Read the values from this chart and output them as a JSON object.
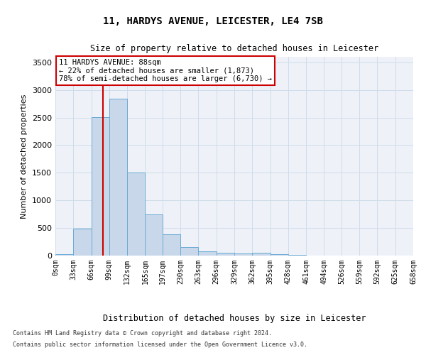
{
  "title": "11, HARDYS AVENUE, LEICESTER, LE4 7SB",
  "subtitle": "Size of property relative to detached houses in Leicester",
  "xlabel": "Distribution of detached houses by size in Leicester",
  "ylabel": "Number of detached properties",
  "bar_color": "#c8d8ea",
  "bar_edge_color": "#6aaad4",
  "grid_color": "#d0dcea",
  "bg_color": "#eef2f8",
  "vline_x": 88,
  "vline_color": "#cc0000",
  "annotation_text": "11 HARDYS AVENUE: 88sqm\n← 22% of detached houses are smaller (1,873)\n78% of semi-detached houses are larger (6,730) →",
  "annotation_box_color": "#ffffff",
  "annotation_box_edge": "#cc0000",
  "bins": [
    0,
    33,
    66,
    99,
    132,
    165,
    197,
    230,
    263,
    296,
    329,
    362,
    395,
    428,
    461,
    494,
    526,
    559,
    592,
    625,
    658
  ],
  "bar_heights": [
    25,
    490,
    2510,
    2840,
    1500,
    750,
    380,
    150,
    75,
    50,
    40,
    55,
    25,
    15,
    5,
    5,
    3,
    3,
    2,
    2
  ],
  "ylim": [
    0,
    3600
  ],
  "yticks": [
    0,
    500,
    1000,
    1500,
    2000,
    2500,
    3000,
    3500
  ],
  "footer_line1": "Contains HM Land Registry data © Crown copyright and database right 2024.",
  "footer_line2": "Contains public sector information licensed under the Open Government Licence v3.0."
}
